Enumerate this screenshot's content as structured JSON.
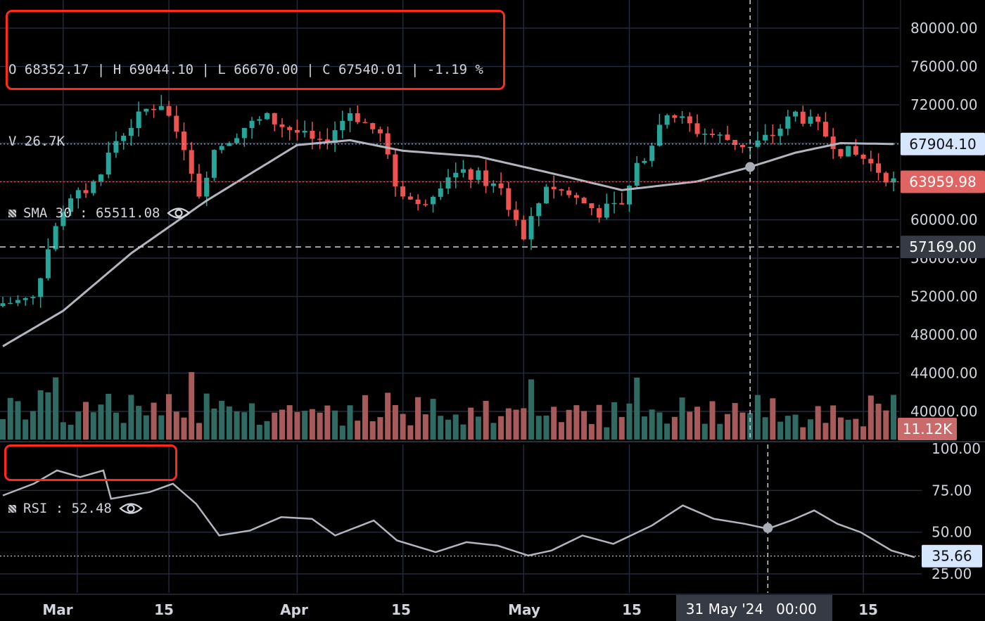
{
  "legend": {
    "ohlc_text": "O 68352.17 | H 69044.10 | L 66670.00 | C 67540.01 | -1.19 %",
    "volume_text": "V 26.7K",
    "sma_text": "SMA 30 : 65511.08",
    "rsi_text": "RSI : 52.48"
  },
  "axis": {
    "price_ticks": [
      "80000.00",
      "76000.00",
      "72000.00",
      "60000.00",
      "52000.00",
      "48000.00",
      "44000.00",
      "40000.00"
    ],
    "rsi_ticks": [
      "100.00",
      "75.00",
      "50.00",
      "25.00"
    ],
    "date_ticks": [
      "Mar",
      "15",
      "Apr",
      "15",
      "May",
      "15",
      "15"
    ]
  },
  "badges": {
    "sma_value": "67904.10",
    "last_price": "63959.98",
    "crosshair_price": "57169.00",
    "volume_value": "11.12K",
    "rsi_value": "35.66",
    "crosshair_date": "31 May '24",
    "crosshair_time": "00:00"
  },
  "colors": {
    "up": "#26a69a",
    "down": "#ef5350",
    "sma_line": "#b2b5be",
    "rsi_line": "#b2b5be",
    "highlight": "#ff2a1a"
  },
  "chart_data": {
    "type": "candlestick",
    "symbol_interval": "daily",
    "x_range": [
      "2024-02-22",
      "2024-06-19"
    ],
    "price_range": [
      43000,
      81500
    ],
    "rsi_range": [
      15,
      102
    ],
    "ohlc_anchor_close": [
      [
        "2024-02-22",
        51300
      ],
      [
        "2024-02-26",
        51700
      ],
      [
        "2024-02-28",
        57000
      ],
      [
        "2024-03-01",
        61200
      ],
      [
        "2024-03-05",
        63800
      ],
      [
        "2024-03-08",
        68300
      ],
      [
        "2024-03-12",
        71500
      ],
      [
        "2024-03-14",
        72200
      ],
      [
        "2024-03-17",
        67800
      ],
      [
        "2024-03-19",
        62800
      ],
      [
        "2024-03-21",
        67300
      ],
      [
        "2024-03-25",
        69700
      ],
      [
        "2024-03-28",
        70600
      ],
      [
        "2024-04-01",
        69100
      ],
      [
        "2024-04-04",
        67700
      ],
      [
        "2024-04-08",
        71300
      ],
      [
        "2024-04-12",
        68800
      ],
      [
        "2024-04-14",
        63700
      ],
      [
        "2024-04-17",
        61300
      ],
      [
        "2024-04-21",
        64800
      ],
      [
        "2024-04-25",
        64500
      ],
      [
        "2024-04-28",
        63000
      ],
      [
        "2024-05-01",
        57800
      ],
      [
        "2024-05-04",
        63800
      ],
      [
        "2024-05-08",
        62200
      ],
      [
        "2024-05-11",
        60800
      ],
      [
        "2024-05-14",
        61500
      ],
      [
        "2024-05-16",
        65300
      ],
      [
        "2024-05-20",
        71400
      ],
      [
        "2024-05-24",
        69300
      ],
      [
        "2024-05-28",
        68400
      ],
      [
        "2024-05-31",
        67540
      ],
      [
        "2024-06-03",
        68900
      ],
      [
        "2024-06-06",
        71100
      ],
      [
        "2024-06-09",
        69600
      ],
      [
        "2024-06-12",
        67300
      ],
      [
        "2024-06-15",
        66400
      ],
      [
        "2024-06-19",
        63960
      ]
    ],
    "sma30_points": [
      [
        "2024-02-22",
        46800
      ],
      [
        "2024-03-01",
        50500
      ],
      [
        "2024-03-10",
        56500
      ],
      [
        "2024-03-20",
        62000
      ],
      [
        "2024-04-01",
        67800
      ],
      [
        "2024-04-08",
        68300
      ],
      [
        "2024-04-15",
        67200
      ],
      [
        "2024-04-25",
        66600
      ],
      [
        "2024-05-05",
        64800
      ],
      [
        "2024-05-14",
        63100
      ],
      [
        "2024-05-24",
        64000
      ],
      [
        "2024-05-31",
        65511
      ],
      [
        "2024-06-06",
        67000
      ],
      [
        "2024-06-12",
        68000
      ],
      [
        "2024-06-19",
        67904
      ]
    ],
    "rsi_points": [
      [
        "2024-02-22",
        72
      ],
      [
        "2024-02-26",
        79
      ],
      [
        "2024-02-29",
        87
      ],
      [
        "2024-03-03",
        83
      ],
      [
        "2024-03-06",
        87
      ],
      [
        "2024-03-07",
        70
      ],
      [
        "2024-03-12",
        74
      ],
      [
        "2024-03-15",
        79
      ],
      [
        "2024-03-18",
        67
      ],
      [
        "2024-03-21",
        48
      ],
      [
        "2024-03-25",
        51
      ],
      [
        "2024-03-29",
        59
      ],
      [
        "2024-04-02",
        58
      ],
      [
        "2024-04-05",
        48
      ],
      [
        "2024-04-10",
        57
      ],
      [
        "2024-04-13",
        45
      ],
      [
        "2024-04-18",
        38
      ],
      [
        "2024-04-22",
        44
      ],
      [
        "2024-04-26",
        42
      ],
      [
        "2024-04-30",
        36
      ],
      [
        "2024-05-03",
        39
      ],
      [
        "2024-05-07",
        48
      ],
      [
        "2024-05-11",
        43
      ],
      [
        "2024-05-16",
        54
      ],
      [
        "2024-05-20",
        66
      ],
      [
        "2024-05-24",
        58
      ],
      [
        "2024-05-28",
        55
      ],
      [
        "2024-05-31",
        52
      ],
      [
        "2024-06-03",
        57
      ],
      [
        "2024-06-06",
        63
      ],
      [
        "2024-06-09",
        55
      ],
      [
        "2024-06-12",
        50
      ],
      [
        "2024-06-16",
        39
      ],
      [
        "2024-06-19",
        35
      ]
    ],
    "volume_range_k": [
      0,
      60
    ]
  }
}
